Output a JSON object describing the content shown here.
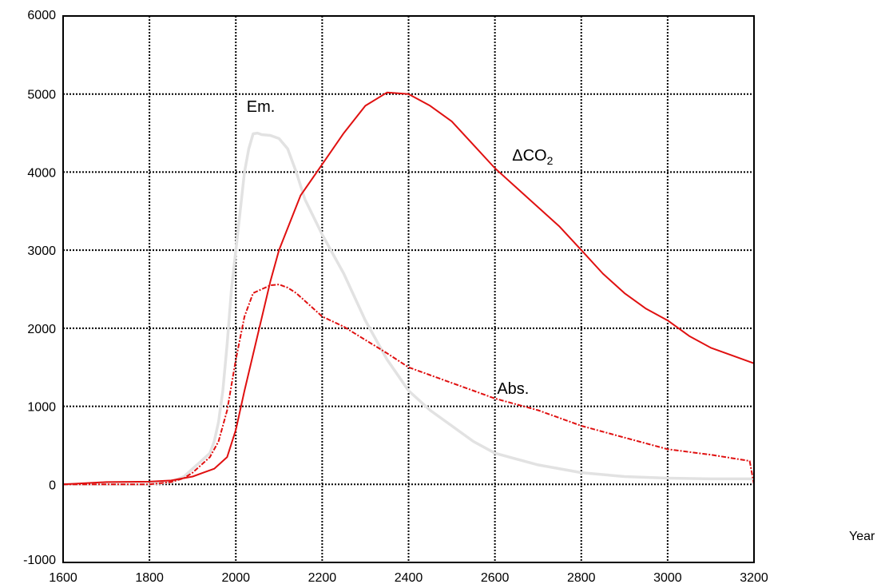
{
  "chart_data": {
    "type": "line",
    "title": "",
    "xlabel": "Year",
    "ylabel": "",
    "xlim": [
      1600,
      3200
    ],
    "ylim": [
      -1000,
      6000
    ],
    "xticks": [
      "1600",
      "1800",
      "2000",
      "2200",
      "2400",
      "2600",
      "2800",
      "3000",
      "3200"
    ],
    "yticks": [
      "-1000",
      "0",
      "1000",
      "2000",
      "3000",
      "4000",
      "5000",
      "6000"
    ],
    "grid": true,
    "colors": {
      "emissions": "#e2e2e2",
      "delta_co2": "#e01010",
      "absorption": "#e01010",
      "grid": "#000000"
    },
    "series": [
      {
        "name": "Em.",
        "style": "solid-light-gray",
        "x": [
          1600,
          1800,
          1850,
          1880,
          1900,
          1920,
          1940,
          1950,
          1960,
          1970,
          1980,
          1990,
          2000,
          2010,
          2020,
          2030,
          2040,
          2050,
          2060,
          2080,
          2100,
          2120,
          2140,
          2160,
          2200,
          2250,
          2300,
          2350,
          2400,
          2450,
          2500,
          2550,
          2600,
          2700,
          2800,
          2900,
          3000,
          3100,
          3200
        ],
        "y": [
          0,
          0,
          30,
          100,
          200,
          300,
          400,
          550,
          800,
          1200,
          1800,
          2500,
          3000,
          3500,
          4000,
          4300,
          4490,
          4500,
          4480,
          4470,
          4430,
          4300,
          4000,
          3650,
          3200,
          2700,
          2100,
          1600,
          1200,
          950,
          750,
          550,
          400,
          250,
          150,
          100,
          80,
          70,
          70
        ]
      },
      {
        "name": "ΔCO2",
        "style": "solid-red",
        "x": [
          1600,
          1700,
          1800,
          1850,
          1900,
          1950,
          1980,
          2000,
          2020,
          2050,
          2080,
          2100,
          2150,
          2200,
          2250,
          2300,
          2350,
          2400,
          2450,
          2500,
          2550,
          2600,
          2650,
          2700,
          2750,
          2800,
          2850,
          2900,
          2950,
          3000,
          3050,
          3100,
          3150,
          3200
        ],
        "y": [
          0,
          30,
          35,
          50,
          100,
          200,
          350,
          700,
          1200,
          1900,
          2600,
          3000,
          3700,
          4100,
          4500,
          4850,
          5020,
          5000,
          4850,
          4650,
          4350,
          4050,
          3800,
          3550,
          3300,
          3000,
          2700,
          2450,
          2250,
          2100,
          1900,
          1750,
          1650,
          1550
        ]
      },
      {
        "name": "Abs.",
        "style": "dash-dot-red",
        "x": [
          1600,
          1800,
          1850,
          1880,
          1900,
          1920,
          1940,
          1960,
          1980,
          2000,
          2020,
          2040,
          2060,
          2080,
          2100,
          2120,
          2140,
          2160,
          2200,
          2250,
          2300,
          2350,
          2400,
          2450,
          2500,
          2550,
          2600,
          2700,
          2800,
          2900,
          3000,
          3100,
          3190,
          3200
        ],
        "y": [
          0,
          0,
          30,
          80,
          150,
          250,
          350,
          550,
          950,
          1600,
          2150,
          2450,
          2500,
          2550,
          2560,
          2520,
          2450,
          2350,
          2150,
          2020,
          1850,
          1680,
          1500,
          1400,
          1300,
          1200,
          1100,
          950,
          750,
          600,
          450,
          380,
          300,
          0
        ]
      }
    ],
    "annotations": [
      {
        "text": "Em.",
        "x": 2025,
        "y": 4770
      },
      {
        "text": "ΔCO",
        "sub": "2",
        "x": 2640,
        "y": 4150
      },
      {
        "text": "Abs.",
        "x": 2605,
        "y": 1160
      }
    ]
  }
}
